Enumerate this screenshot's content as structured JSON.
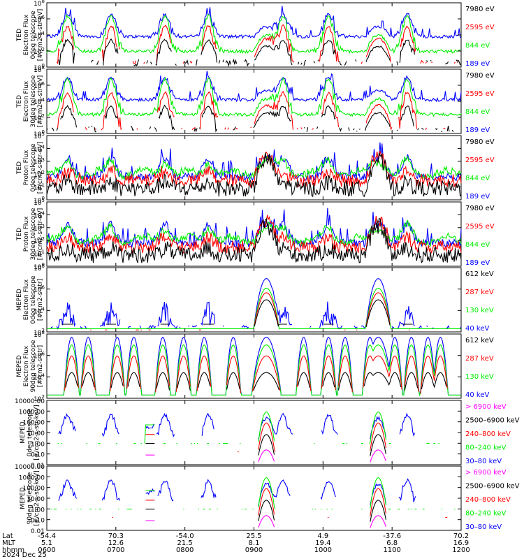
{
  "colors": {
    "blue": "#0000ff",
    "red": "#ff0000",
    "green": "#00ee00",
    "black": "#000000",
    "magenta": "#ff00ff"
  },
  "footer": {
    "row_labels": [
      "Lat",
      "MLT",
      "hhmm"
    ],
    "date": "2024 Dec 25",
    "columns": [
      {
        "lat": "-54.4",
        "mlt": "5.1",
        "hhmm": "0600"
      },
      {
        "lat": "70.3",
        "mlt": "12.6",
        "hhmm": "0700"
      },
      {
        "lat": "-54.0",
        "mlt": "21.5",
        "hhmm": "0800"
      },
      {
        "lat": "25.5",
        "mlt": "8.1",
        "hhmm": "0900"
      },
      {
        "lat": "4.9",
        "mlt": "19.4",
        "hhmm": "1000"
      },
      {
        "lat": "-37.6",
        "mlt": "6.8",
        "hhmm": "1100"
      },
      {
        "lat": "70.2",
        "mlt": "16.9",
        "hhmm": "1200"
      }
    ]
  },
  "chart_data": [
    {
      "type": "line",
      "ylabel": [
        "TED",
        "Electron Flux",
        "0deg telescope",
        "[#/cm2-s-str-eV]"
      ],
      "scale": "log",
      "ylim_exp": [
        0,
        8
      ],
      "yticks": [
        "10^0",
        "10^2",
        "10^4",
        "10^6",
        "10^8"
      ],
      "legend": [
        {
          "label": "7980 eV",
          "color": "black"
        },
        {
          "label": "2595 eV",
          "color": "red"
        },
        {
          "label": "844 eV",
          "color": "green"
        },
        {
          "label": "189 eV",
          "color": "blue"
        }
      ],
      "profile": "ted_e"
    },
    {
      "type": "line",
      "ylabel": [
        "TED",
        "Electron Flux",
        "30deg telescope",
        "[#/cm2-s-str-eV]"
      ],
      "scale": "log",
      "ylim_exp": [
        0,
        8
      ],
      "yticks": [
        "10^0",
        "10^2",
        "10^4",
        "10^6",
        "10^8"
      ],
      "legend": [
        {
          "label": "7980 eV",
          "color": "black"
        },
        {
          "label": "2595 eV",
          "color": "red"
        },
        {
          "label": "844 eV",
          "color": "green"
        },
        {
          "label": "189 eV",
          "color": "blue"
        }
      ],
      "profile": "ted_e2"
    },
    {
      "type": "line",
      "ylabel": [
        "TED",
        "Proton Flux",
        "0deg telescope",
        "[#/cm2-s-str-eV]"
      ],
      "scale": "log",
      "ylim_exp": [
        0,
        5
      ],
      "yticks": [
        "10^0",
        "10^1",
        "10^2",
        "10^3",
        "10^4",
        "10^5"
      ],
      "legend": [
        {
          "label": "7980 eV",
          "color": "black"
        },
        {
          "label": "2595 eV",
          "color": "red"
        },
        {
          "label": "844 eV",
          "color": "green"
        },
        {
          "label": "189 eV",
          "color": "blue"
        }
      ],
      "profile": "ted_p"
    },
    {
      "type": "line",
      "ylabel": [
        "TED",
        "Proton Flux",
        "30deg telescope",
        "[#/cm2-s-str-eV]"
      ],
      "scale": "log",
      "ylim_exp": [
        0,
        5
      ],
      "yticks": [
        "10^0",
        "10^1",
        "10^2",
        "10^3",
        "10^4",
        "10^5"
      ],
      "legend": [
        {
          "label": "7980 eV",
          "color": "black"
        },
        {
          "label": "2595 eV",
          "color": "red"
        },
        {
          "label": "844 eV",
          "color": "green"
        },
        {
          "label": "189 eV",
          "color": "blue"
        }
      ],
      "profile": "ted_p2"
    },
    {
      "type": "line",
      "ylabel": [
        "MEPED",
        "Electron Flux",
        "0deg telescope",
        "[#/cm2-s-str]"
      ],
      "scale": "log",
      "ylim_exp": [
        2,
        8
      ],
      "yticks": [
        "10^2",
        "10^4",
        "10^6",
        "10^8"
      ],
      "legend": [
        {
          "label": "612 keV",
          "color": "black"
        },
        {
          "label": "287 keV",
          "color": "red"
        },
        {
          "label": "130 keV",
          "color": "green"
        },
        {
          "label": "40 keV",
          "color": "blue"
        }
      ],
      "profile": "meped_e0"
    },
    {
      "type": "line",
      "ylabel": [
        "MEPED",
        "Electron Flux",
        "90deg telescope",
        "[#/cm2-s-str]"
      ],
      "scale": "log",
      "ylim_exp": [
        2,
        8
      ],
      "yticks": [
        "10^2",
        "10^4",
        "10^6",
        "10^8"
      ],
      "legend": [
        {
          "label": "612 keV",
          "color": "black"
        },
        {
          "label": "287 keV",
          "color": "red"
        },
        {
          "label": "130 keV",
          "color": "green"
        },
        {
          "label": "40 keV",
          "color": "blue"
        }
      ],
      "profile": "meped_e90"
    },
    {
      "type": "line",
      "ylabel": [
        "MEPED",
        "0deg telescope",
        "[#/cm2-s-str-keV]"
      ],
      "scale": "log",
      "ylim_exp": [
        -2,
        4
      ],
      "yticks": [
        "0.01",
        "0.10",
        "1.00",
        "10.00",
        "100.00",
        "1000.00",
        "10000.00"
      ],
      "legend": [
        {
          "label": "> 6900 keV",
          "color": "magenta"
        },
        {
          "label": "2500–6900 keV",
          "color": "black"
        },
        {
          "label": "240–800 keV",
          "color": "red"
        },
        {
          "label": "80–240 keV",
          "color": "green"
        },
        {
          "label": "30–80 keV",
          "color": "blue"
        }
      ],
      "profile": "meped_p0"
    },
    {
      "type": "line",
      "ylabel": [
        "MEPED",
        "90deg telescope",
        "[#/cm2-s-str-keV]"
      ],
      "scale": "log",
      "ylim_exp": [
        -2,
        4
      ],
      "yticks": [
        "0.01",
        "0.10",
        "1.00",
        "10.00",
        "100.00",
        "1000.00",
        "10000.00"
      ],
      "legend": [
        {
          "label": "> 6900 keV",
          "color": "magenta"
        },
        {
          "label": "2500–6900 keV",
          "color": "black"
        },
        {
          "label": "240–800 keV",
          "color": "red"
        },
        {
          "label": "80–240 keV",
          "color": "green"
        },
        {
          "label": "30–80 keV",
          "color": "blue"
        }
      ],
      "profile": "meped_p90"
    }
  ]
}
